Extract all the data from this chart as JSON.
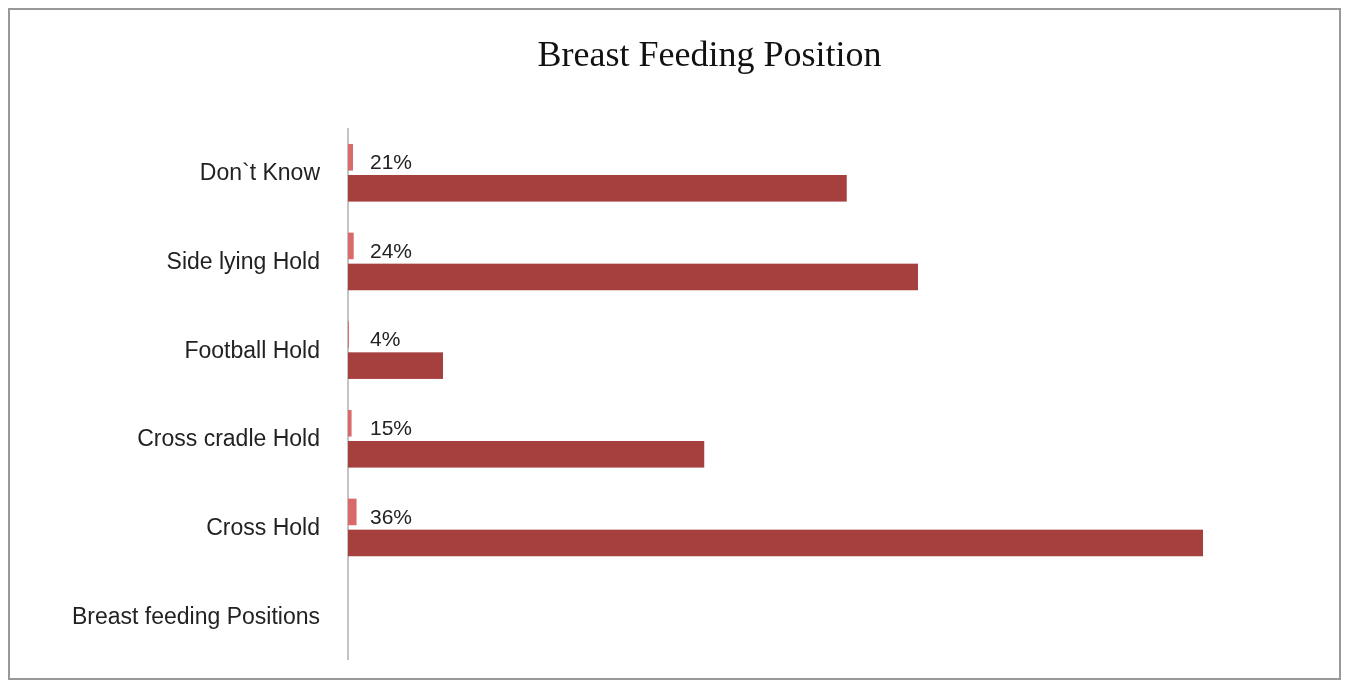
{
  "chart_data": {
    "type": "bar",
    "orientation": "horizontal",
    "title": "Breast Feeding Position",
    "categories": [
      "Don`t  Know",
      "Side lying Hold",
      "Football Hold",
      "Cross cradle Hold",
      "Cross Hold",
      "Breast feeding Positions"
    ],
    "tick_labels": "y",
    "xlim": [
      0,
      36
    ],
    "series": [
      {
        "color": "#d9696a",
        "values": [
          0.21,
          0.24,
          0.04,
          0.15,
          0.36,
          null
        ]
      },
      {
        "color": "#a5403f",
        "values": [
          21,
          24,
          4,
          15,
          36,
          null
        ],
        "value_labels": [
          "21%",
          "24%",
          "4%",
          "15%",
          "36%",
          null
        ]
      }
    ]
  }
}
